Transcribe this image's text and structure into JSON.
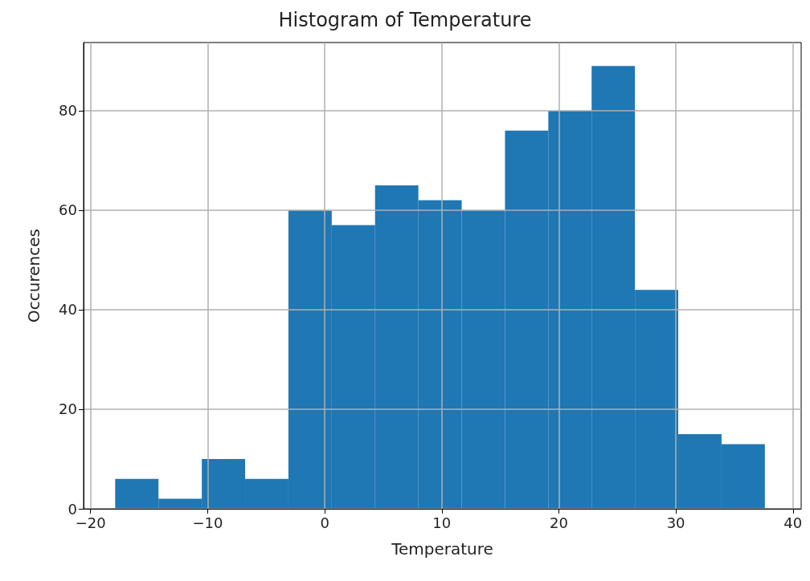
{
  "chart_data": {
    "type": "histogram",
    "title": "Histogram of Temperature",
    "xlabel": "Temperature",
    "ylabel": "Occurences",
    "color": "#1f77b4",
    "bins": [
      -17.9,
      -14.2,
      -10.5,
      -6.8,
      -3.1,
      0.6,
      4.3,
      8.0,
      11.7,
      15.4,
      19.1,
      22.8,
      26.5,
      30.2,
      33.9,
      37.6
    ],
    "values": [
      6,
      2,
      10,
      6,
      60,
      57,
      65,
      62,
      60,
      76,
      80,
      89,
      44,
      15,
      13
    ],
    "xlim": [
      -20.6,
      40.7
    ],
    "xticks": [
      -20,
      -10,
      0,
      10,
      20,
      30,
      40
    ],
    "ylim": [
      0,
      93.7
    ],
    "yticks": [
      0,
      20,
      40,
      60,
      80
    ],
    "grid": true
  }
}
